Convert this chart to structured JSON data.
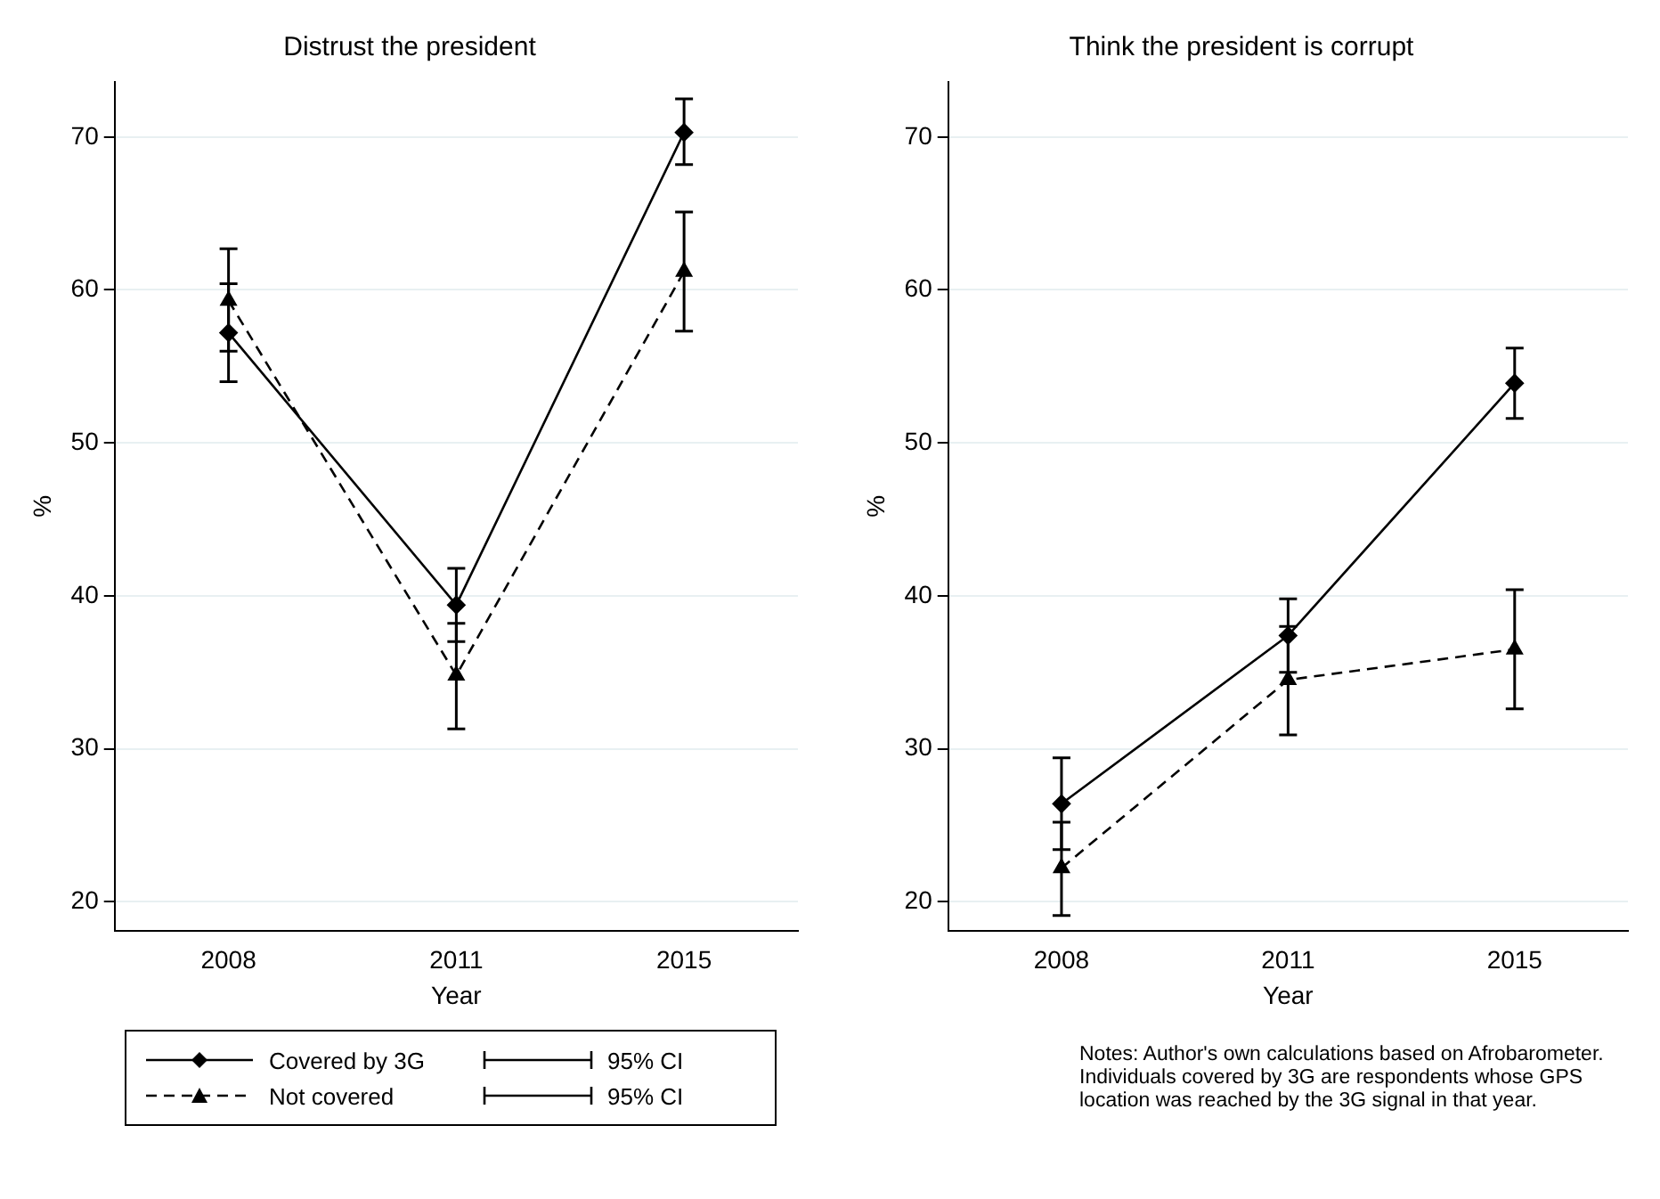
{
  "chart_data": [
    {
      "type": "line",
      "title": "Distrust the president",
      "xlabel": "Year",
      "ylabel": "%",
      "categories": [
        "2008",
        "2011",
        "2015"
      ],
      "ylim": [
        18.1,
        73.6
      ],
      "yticks": [
        20,
        30,
        40,
        50,
        60,
        70
      ],
      "grid": "y",
      "legend": "bottom",
      "annotations": [
        "95% CI",
        "95% CI"
      ],
      "series": [
        {
          "name": "Covered by 3G",
          "color": "#000000",
          "marker": "diamond",
          "line_style": "solid",
          "values": [
            57.2,
            39.4,
            70.3
          ],
          "errors": [
            [
              54.0,
              60.4
            ],
            [
              37.0,
              41.8
            ],
            [
              68.2,
              72.5
            ]
          ]
        },
        {
          "name": "Not covered",
          "color": "#000000",
          "marker": "triangle",
          "line_style": "dashed",
          "values": [
            59.3,
            34.8,
            61.2
          ],
          "errors": [
            [
              56.0,
              62.7
            ],
            [
              31.3,
              38.2
            ],
            [
              57.3,
              65.1
            ]
          ]
        }
      ]
    },
    {
      "type": "line",
      "title": "Think the president is corrupt",
      "xlabel": "Year",
      "ylabel": "%",
      "categories": [
        "2008",
        "2011",
        "2015"
      ],
      "ylim": [
        18.1,
        73.6
      ],
      "yticks": [
        20,
        30,
        40,
        50,
        60,
        70
      ],
      "grid": "y",
      "annotations": [
        "Notes: Author's own calculations based on Afrobarometer.\nIndividuals covered by 3G are respondents whose GPS\nlocation was reached by the 3G signal in that year."
      ],
      "series": [
        {
          "color": "#000000",
          "marker": "diamond",
          "line_style": "solid",
          "values": [
            26.4,
            37.4,
            53.9
          ],
          "errors": [
            [
              23.4,
              29.4
            ],
            [
              35.0,
              39.8
            ],
            [
              51.6,
              56.2
            ]
          ]
        },
        {
          "color": "#000000",
          "marker": "triangle",
          "line_style": "dashed",
          "values": [
            22.2,
            34.5,
            36.5
          ],
          "errors": [
            [
              19.1,
              25.2
            ],
            [
              30.9,
              38.0
            ],
            [
              32.6,
              40.4
            ]
          ]
        }
      ]
    }
  ]
}
